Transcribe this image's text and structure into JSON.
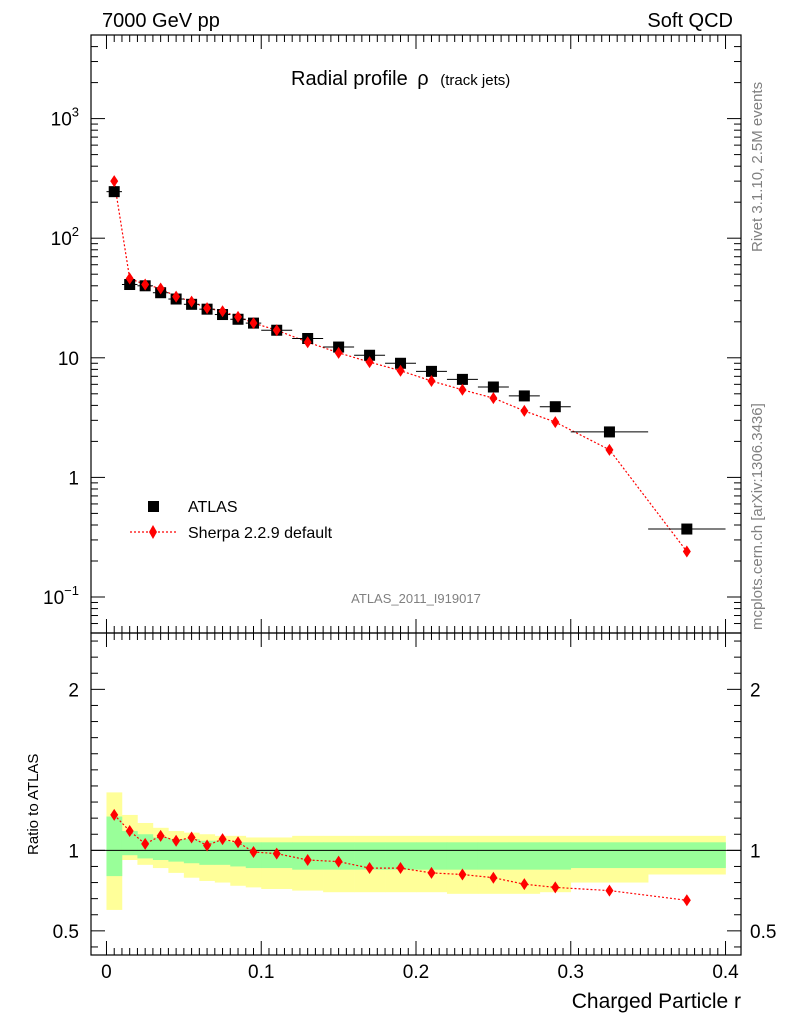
{
  "header": {
    "left": "7000 GeV pp",
    "right": "Soft QCD"
  },
  "side_labels": {
    "rivet": "Rivet 3.1.10,  2.5M events",
    "mcplots": "mcplots.cern.ch [arXiv:1306.3436]"
  },
  "chart_data": [
    {
      "type": "scatter",
      "title": "Radial profile",
      "title_symbol": "ρ",
      "title_suffix": "(track jets)",
      "analysis_id": "ATLAS_2011_I919017",
      "yscale": "log",
      "ylim": [
        0.05,
        5000
      ],
      "xlim": [
        -0.01,
        0.41
      ],
      "ytick_labels": [
        {
          "base": "10",
          "exp": "3",
          "value": 1000
        },
        {
          "base": "10",
          "exp": "2",
          "value": 100
        },
        {
          "base": "10",
          "exp": "",
          "value": 10
        },
        {
          "base": "1",
          "exp": "",
          "value": 1
        },
        {
          "base": "10",
          "exp": "−1",
          "value": 0.1
        }
      ],
      "legend": [
        {
          "label": "ATLAS",
          "marker": "square",
          "color": "#000000"
        },
        {
          "label": "Sherpa 2.2.9 default",
          "marker": "diamond",
          "color": "#ff0000"
        }
      ],
      "series": [
        {
          "name": "ATLAS",
          "x": [
            0.005,
            0.015,
            0.025,
            0.035,
            0.045,
            0.055,
            0.065,
            0.075,
            0.085,
            0.095,
            0.11,
            0.13,
            0.15,
            0.17,
            0.19,
            0.21,
            0.23,
            0.25,
            0.27,
            0.29,
            0.325,
            0.375
          ],
          "xerr": [
            0.005,
            0.005,
            0.005,
            0.005,
            0.005,
            0.005,
            0.005,
            0.005,
            0.005,
            0.005,
            0.01,
            0.01,
            0.01,
            0.01,
            0.01,
            0.01,
            0.01,
            0.01,
            0.01,
            0.01,
            0.025,
            0.025
          ],
          "values": [
            245,
            41,
            40,
            35,
            31,
            28,
            25.5,
            23,
            21,
            19.5,
            17,
            14.5,
            12.3,
            10.5,
            9.0,
            7.7,
            6.6,
            5.7,
            4.8,
            3.9,
            2.4,
            0.37
          ]
        },
        {
          "name": "Sherpa 2.2.9 default",
          "x": [
            0.005,
            0.015,
            0.025,
            0.035,
            0.045,
            0.055,
            0.065,
            0.075,
            0.085,
            0.095,
            0.11,
            0.13,
            0.15,
            0.17,
            0.19,
            0.21,
            0.23,
            0.25,
            0.27,
            0.29,
            0.325,
            0.375
          ],
          "values": [
            300,
            46,
            41,
            38,
            32.5,
            29.5,
            26,
            24.5,
            22,
            19.5,
            17,
            13.5,
            11,
            9.2,
            7.8,
            6.4,
            5.4,
            4.6,
            3.6,
            2.9,
            1.7,
            0.24
          ]
        }
      ]
    },
    {
      "type": "scatter",
      "ylabel": "Ratio to ATLAS",
      "xlabel": "Charged Particle r",
      "ylim": [
        0.35,
        2.35
      ],
      "xlim": [
        -0.01,
        0.41
      ],
      "ytick_labels": [
        {
          "label": "2",
          "value": 2
        },
        {
          "label": "1",
          "value": 1
        },
        {
          "label": "0.5",
          "value": 0.5
        }
      ],
      "xtick_labels": [
        {
          "label": "0",
          "value": 0
        },
        {
          "label": "0.1",
          "value": 0.1
        },
        {
          "label": "0.2",
          "value": 0.2
        },
        {
          "label": "0.3",
          "value": 0.3
        },
        {
          "label": "0.4",
          "value": 0.4
        }
      ],
      "bands": {
        "bin_edges": [
          0.0,
          0.01,
          0.02,
          0.03,
          0.04,
          0.05,
          0.06,
          0.07,
          0.08,
          0.09,
          0.1,
          0.12,
          0.14,
          0.16,
          0.18,
          0.2,
          0.22,
          0.24,
          0.26,
          0.28,
          0.3,
          0.35,
          0.4
        ],
        "yellow_low": [
          0.63,
          0.94,
          0.91,
          0.89,
          0.86,
          0.83,
          0.81,
          0.8,
          0.78,
          0.77,
          0.76,
          0.75,
          0.74,
          0.74,
          0.74,
          0.74,
          0.73,
          0.73,
          0.73,
          0.74,
          0.8,
          0.85
        ],
        "yellow_high": [
          1.36,
          1.22,
          1.17,
          1.14,
          1.12,
          1.11,
          1.1,
          1.09,
          1.09,
          1.08,
          1.08,
          1.09,
          1.09,
          1.09,
          1.09,
          1.09,
          1.09,
          1.09,
          1.09,
          1.09,
          1.09,
          1.09
        ],
        "green_low": [
          0.84,
          0.97,
          0.95,
          0.94,
          0.93,
          0.92,
          0.91,
          0.91,
          0.9,
          0.89,
          0.89,
          0.88,
          0.88,
          0.88,
          0.88,
          0.88,
          0.88,
          0.88,
          0.88,
          0.88,
          0.89,
          0.89
        ],
        "green_high": [
          1.21,
          1.12,
          1.1,
          1.08,
          1.07,
          1.07,
          1.06,
          1.06,
          1.05,
          1.05,
          1.05,
          1.05,
          1.05,
          1.05,
          1.05,
          1.05,
          1.05,
          1.05,
          1.05,
          1.05,
          1.05,
          1.05
        ]
      },
      "series": [
        {
          "name": "Sherpa 2.2.9 default / ATLAS",
          "x": [
            0.005,
            0.015,
            0.025,
            0.035,
            0.045,
            0.055,
            0.065,
            0.075,
            0.085,
            0.095,
            0.11,
            0.13,
            0.15,
            0.17,
            0.19,
            0.21,
            0.23,
            0.25,
            0.27,
            0.29,
            0.325,
            0.375
          ],
          "values": [
            1.22,
            1.12,
            1.04,
            1.09,
            1.06,
            1.08,
            1.03,
            1.07,
            1.05,
            0.99,
            0.98,
            0.94,
            0.93,
            0.89,
            0.89,
            0.86,
            0.85,
            0.83,
            0.79,
            0.77,
            0.75,
            0.69
          ]
        }
      ]
    }
  ]
}
